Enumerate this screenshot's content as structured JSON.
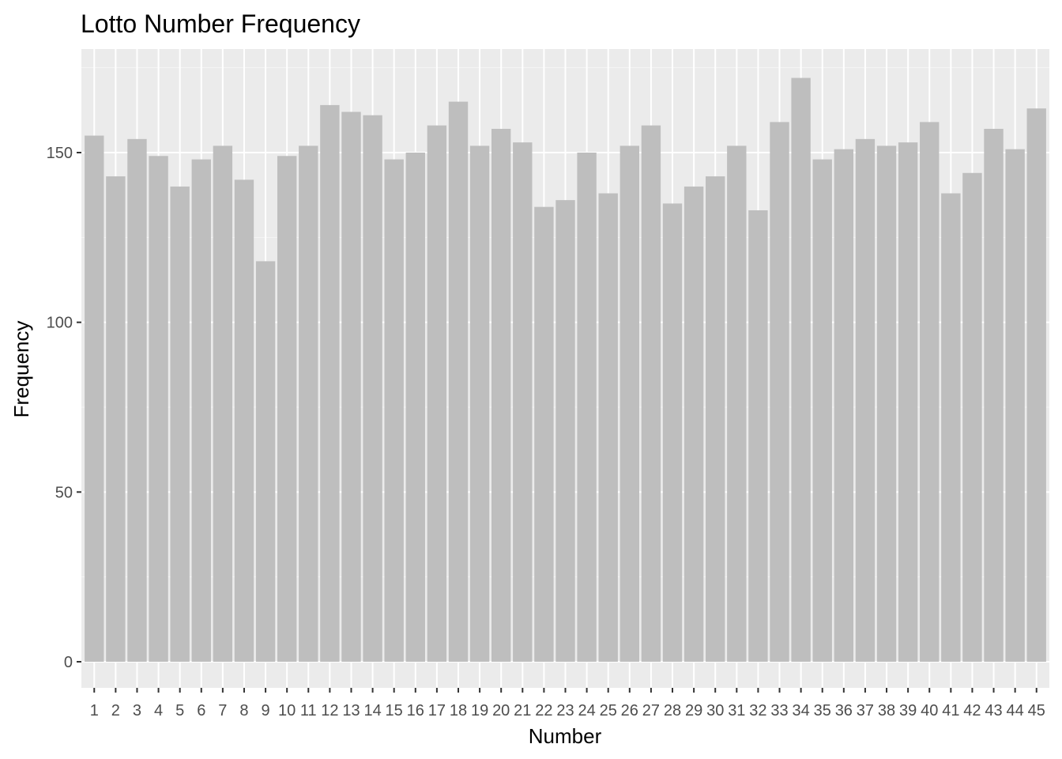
{
  "chart_data": {
    "type": "bar",
    "title": "Lotto Number Frequency",
    "xlabel": "Number",
    "ylabel": "Frequency",
    "categories": [
      "1",
      "2",
      "3",
      "4",
      "5",
      "6",
      "7",
      "8",
      "9",
      "10",
      "11",
      "12",
      "13",
      "14",
      "15",
      "16",
      "17",
      "18",
      "19",
      "20",
      "21",
      "22",
      "23",
      "24",
      "25",
      "26",
      "27",
      "28",
      "29",
      "30",
      "31",
      "32",
      "33",
      "34",
      "35",
      "36",
      "37",
      "38",
      "39",
      "40",
      "41",
      "42",
      "43",
      "44",
      "45"
    ],
    "values": [
      155,
      143,
      154,
      149,
      140,
      148,
      152,
      142,
      118,
      149,
      152,
      164,
      162,
      161,
      148,
      150,
      158,
      165,
      152,
      157,
      153,
      134,
      136,
      150,
      138,
      152,
      158,
      135,
      140,
      143,
      152,
      133,
      159,
      172,
      148,
      151,
      154,
      152,
      153,
      159,
      138,
      144,
      157,
      151,
      163
    ],
    "ylim": [
      0,
      180
    ],
    "yticks": [
      0,
      50,
      100,
      150
    ],
    "grid": true,
    "legend": "none",
    "colors": {
      "bar": "#bebebe",
      "panel": "#ebebeb",
      "grid_major": "#ffffff",
      "grid_minor": "#f5f5f5",
      "tick": "#333333"
    }
  }
}
